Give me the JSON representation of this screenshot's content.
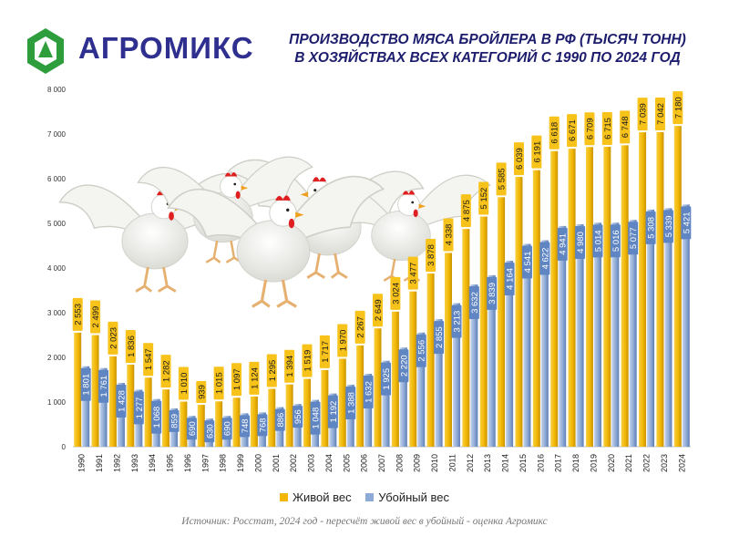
{
  "brand": {
    "name": "АГРОМИКС",
    "colors": {
      "logo_green": "#2e9e3c",
      "logo_text": "#2f2f8f"
    }
  },
  "title": {
    "line1": "ПРОИЗВОДСТВО МЯСА БРОЙЛЕРА В РФ (ТЫСЯЧ ТОНН)",
    "line2": "В ХОЗЯЙСТВАХ ВСЕХ КАТЕГОРИЙ С 1990 ПО 2024 ГОД"
  },
  "source": "Источник: Росстат, 2024 год - пересчёт живой вес в убойный - оценка Агромикс",
  "chart_data": {
    "type": "bar",
    "categories": [
      "1990",
      "1991",
      "1992",
      "1993",
      "1994",
      "1995",
      "1996",
      "1997",
      "1998",
      "1999",
      "2000",
      "2001",
      "2002",
      "2003",
      "2004",
      "2005",
      "2006",
      "2007",
      "2008",
      "2009",
      "2010",
      "2011",
      "2012",
      "2013",
      "2014",
      "2015",
      "2016",
      "2017",
      "2018",
      "2019",
      "2020",
      "2021",
      "2022",
      "2023",
      "2024"
    ],
    "series": [
      {
        "name": "Живой вес",
        "color": "#f2b705",
        "values": [
          2553,
          2499,
          2023,
          1836,
          1547,
          1282,
          1010,
          939,
          1015,
          1097,
          1124,
          1295,
          1394,
          1519,
          1717,
          1970,
          2267,
          2649,
          3024,
          3477,
          3878,
          4338,
          4875,
          5152,
          5585,
          6039,
          6191,
          6618,
          6671,
          6709,
          6715,
          6748,
          7039,
          7042,
          7180
        ],
        "labels": [
          "2 553",
          "2 499",
          "2 023",
          "1 836",
          "1 547",
          "1 282",
          "1 010",
          "939",
          "1 015",
          "1 097",
          "1 124",
          "1 295",
          "1 394",
          "1 519",
          "1 717",
          "1 970",
          "2 267",
          "2 649",
          "3 024",
          "3 477",
          "3 878",
          "4 338",
          "4 875",
          "5 152",
          "5 585",
          "6 039",
          "6 191",
          "6 618",
          "6 671",
          "6 709",
          "6 715",
          "6 748",
          "7 039",
          "7 042",
          "7 180"
        ]
      },
      {
        "name": "Убойный вес",
        "color": "#8eaad6",
        "values": [
          1801,
          1761,
          1428,
          1277,
          1068,
          859,
          690,
          630,
          690,
          748,
          768,
          886,
          956,
          1048,
          1192,
          1388,
          1632,
          1925,
          2220,
          2556,
          2855,
          3213,
          3632,
          3839,
          4164,
          4541,
          4622,
          4941,
          4980,
          5014,
          5016,
          5077,
          5308,
          5339,
          5421
        ],
        "labels": [
          "1 801",
          "1 761",
          "1 428",
          "1 277",
          "1 068",
          "859",
          "690",
          "630",
          "690",
          "748",
          "768",
          "886",
          "956",
          "1 048",
          "1 192",
          "1 388",
          "1 632",
          "1 925",
          "2 220",
          "2 556",
          "2 855",
          "3 213",
          "3 632",
          "3 839",
          "4 164",
          "4 541",
          "4 622",
          "4 941",
          "4 980",
          "5 014",
          "5 016",
          "5 077",
          "5 308",
          "5 339",
          "5 421"
        ]
      }
    ],
    "y_ticks": [
      "0",
      "1 000",
      "2 000",
      "3 000",
      "4 000",
      "5 000",
      "6 000",
      "7 000",
      "8 000"
    ],
    "ylim": [
      0,
      8000
    ],
    "grid": false,
    "legend_position": "bottom"
  }
}
